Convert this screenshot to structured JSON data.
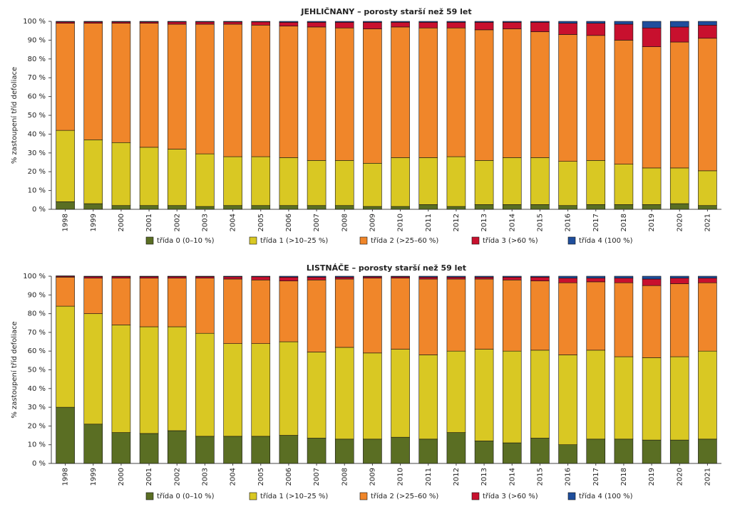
{
  "chart_data": [
    {
      "type": "stacked_bar",
      "title": "JEHLIČNANY – porosty starší než 59 let",
      "y_label": "% zastoupení tříd defoliace",
      "categories": [
        "1998",
        "1999",
        "2000",
        "2001",
        "2002",
        "2003",
        "2004",
        "2005",
        "2006",
        "2007",
        "2008",
        "2009",
        "2010",
        "2011",
        "2012",
        "2013",
        "2014",
        "2015",
        "2016",
        "2017",
        "2018",
        "2019",
        "2020",
        "2021"
      ],
      "ylim": [
        0,
        100
      ],
      "yticks": [
        {
          "value": 0,
          "label": "0 %"
        },
        {
          "value": 10,
          "label": "10 %"
        },
        {
          "value": 20,
          "label": "20 %"
        },
        {
          "value": 30,
          "label": "30 %"
        },
        {
          "value": 40,
          "label": "40 %"
        },
        {
          "value": 50,
          "label": "50 %"
        },
        {
          "value": 60,
          "label": "60 %"
        },
        {
          "value": 70,
          "label": "70 %"
        },
        {
          "value": 80,
          "label": "80 %"
        },
        {
          "value": 90,
          "label": "90 %"
        },
        {
          "value": 100,
          "label": "100 %"
        }
      ],
      "series": [
        {
          "name": "třída 0 (0–10 %)",
          "color": "#5a6e23",
          "values": [
            4,
            3,
            2,
            2,
            2,
            1.5,
            2,
            2,
            2,
            2,
            2,
            1.5,
            1.5,
            2.5,
            1.5,
            2.5,
            2.5,
            2.5,
            2,
            2.5,
            2.5,
            2.5,
            3,
            2
          ]
        },
        {
          "name": "třída 1 (>10–25 %)",
          "color": "#d9c823",
          "values": [
            38,
            34,
            33.5,
            31,
            30,
            28,
            26,
            26,
            25.5,
            24,
            24,
            23,
            26,
            25,
            26.5,
            23.5,
            25,
            25,
            23.5,
            23.5,
            21.5,
            19.5,
            19,
            18.5
          ]
        },
        {
          "name": "třída 2 (>25–60 %)",
          "color": "#f0862a",
          "values": [
            57,
            62,
            63.5,
            66,
            66.5,
            69,
            70.5,
            70,
            70,
            71,
            70.5,
            71.5,
            69.5,
            69,
            68.5,
            69.5,
            68.5,
            67,
            67.5,
            66.5,
            66,
            64.5,
            67,
            70.5
          ]
        },
        {
          "name": "třída 3 (>60 %)",
          "color": "#c8102e",
          "values": [
            0.7,
            0.7,
            0.7,
            0.7,
            1.2,
            1.2,
            1.2,
            1.7,
            2,
            2.5,
            3,
            3.5,
            2.5,
            3,
            3,
            4,
            3.5,
            5,
            6,
            6.5,
            8.5,
            10,
            8,
            7
          ]
        },
        {
          "name": "třída 4 (100 %)",
          "color": "#1f4e9c",
          "values": [
            0.3,
            0.3,
            0.3,
            0.3,
            0.3,
            0.3,
            0.3,
            0.3,
            0.5,
            0.5,
            0.5,
            0.5,
            0.5,
            0.5,
            0.5,
            0.5,
            0.5,
            0.5,
            1,
            1,
            1.5,
            3.5,
            3,
            2
          ]
        }
      ]
    },
    {
      "type": "stacked_bar",
      "title": "LISTNÁČE – porosty starší než 59 let",
      "y_label": "% zastoupení tříd defoliace",
      "categories": [
        "1998",
        "1999",
        "2000",
        "2001",
        "2002",
        "2003",
        "2004",
        "2005",
        "2006",
        "2007",
        "2008",
        "2009",
        "2010",
        "2011",
        "2012",
        "2013",
        "2014",
        "2015",
        "2016",
        "2017",
        "2018",
        "2019",
        "2020",
        "2021"
      ],
      "ylim": [
        0,
        100
      ],
      "yticks": [
        {
          "value": 0,
          "label": "0 %"
        },
        {
          "value": 10,
          "label": "10 %"
        },
        {
          "value": 20,
          "label": "20 %"
        },
        {
          "value": 30,
          "label": "30 %"
        },
        {
          "value": 40,
          "label": "40 %"
        },
        {
          "value": 50,
          "label": "50 %"
        },
        {
          "value": 60,
          "label": "60 %"
        },
        {
          "value": 70,
          "label": "70 %"
        },
        {
          "value": 80,
          "label": "80 %"
        },
        {
          "value": 90,
          "label": "90 %"
        },
        {
          "value": 100,
          "label": "100 %"
        }
      ],
      "series": [
        {
          "name": "třída 0 (0–10 %)",
          "color": "#5a6e23",
          "values": [
            30,
            21,
            16.5,
            16,
            17.5,
            14.5,
            14.5,
            14.5,
            15,
            13.5,
            13,
            13,
            14,
            13,
            16.5,
            12,
            11,
            13.5,
            10,
            13,
            13,
            12.5,
            12.5,
            13
          ]
        },
        {
          "name": "třída 1 (>10–25 %)",
          "color": "#d9c823",
          "values": [
            54,
            59,
            57.5,
            57,
            55.5,
            55,
            49.5,
            49.5,
            50,
            46,
            49,
            46,
            47,
            45,
            43.5,
            49,
            49,
            47,
            48,
            47.5,
            44,
            44,
            44.5,
            47
          ]
        },
        {
          "name": "třída 2 (>25–60 %)",
          "color": "#f0862a",
          "values": [
            15.5,
            19,
            25,
            26,
            26,
            29.5,
            34.5,
            34,
            32.5,
            38.5,
            36.5,
            40,
            38,
            40.5,
            38.5,
            37.5,
            38,
            37,
            38.5,
            36.5,
            39.5,
            38.5,
            39,
            36.5
          ]
        },
        {
          "name": "třída 3 (>60 %)",
          "color": "#c8102e",
          "values": [
            0.5,
            0.8,
            0.8,
            0.8,
            0.8,
            0.8,
            1.2,
            1.7,
            2,
            1.5,
            1,
            0.7,
            0.7,
            1,
            1,
            1,
            1.5,
            2,
            2.5,
            2,
            2.5,
            3.5,
            3,
            2.5
          ]
        },
        {
          "name": "třída 4 (100 %)",
          "color": "#1f4e9c",
          "values": [
            0.2,
            0.2,
            0.2,
            0.2,
            0.2,
            0.2,
            0.3,
            0.3,
            0.5,
            0.5,
            0.5,
            0.3,
            0.3,
            0.5,
            0.5,
            0.5,
            0.5,
            0.5,
            1,
            1,
            1,
            1.5,
            1,
            1
          ]
        }
      ]
    }
  ]
}
